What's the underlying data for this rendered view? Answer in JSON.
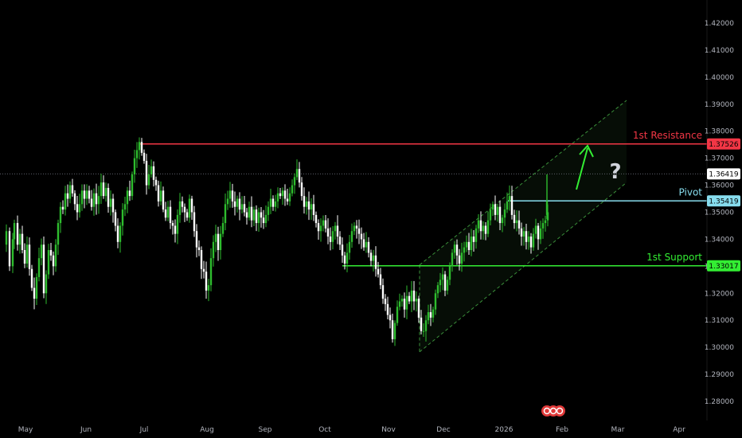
{
  "chart_data": {
    "type": "candlestick",
    "title": "",
    "xlabel": "",
    "ylabel": "",
    "ylim": [
      1.275,
      1.425
    ],
    "grid": false,
    "x_ticks": [
      "May",
      "Jun",
      "Jul",
      "Aug",
      "Sep",
      "Oct",
      "Nov",
      "Dec",
      "2026",
      "Feb",
      "Mar",
      "Apr"
    ],
    "y_ticks": [
      "1.28000",
      "1.29000",
      "1.30000",
      "1.31000",
      "1.32000",
      "1.33000",
      "1.34000",
      "1.35000",
      "1.36000",
      "1.37000",
      "1.38000",
      "1.39000",
      "1.40000",
      "1.41000",
      "1.42000"
    ],
    "current_price": {
      "label": "1.36419",
      "value": 1.36419
    },
    "levels": [
      {
        "name": "1st Resistance",
        "tag": "1.37526",
        "value": 1.37526,
        "color": "#f23645"
      },
      {
        "name": "Pivot",
        "tag": "1.35419",
        "value": 1.35419,
        "color": "#87ddee"
      },
      {
        "name": "1st Support",
        "tag": "1.33017",
        "value": 1.33017,
        "color": "#33ee33"
      }
    ],
    "annotations": {
      "question_mark": "?"
    },
    "colors": {
      "up": "#2ebd2e",
      "down": "#ffffff",
      "channel": "#3a8f3a",
      "arrow": "#33ee33"
    },
    "price_path": [
      [
        0,
        1.338
      ],
      [
        8,
        1.343
      ],
      [
        12,
        1.33
      ],
      [
        16,
        1.34
      ],
      [
        18,
        1.346
      ],
      [
        22,
        1.338
      ],
      [
        25,
        1.342
      ],
      [
        28,
        1.336
      ],
      [
        31,
        1.331
      ],
      [
        34,
        1.338
      ],
      [
        37,
        1.329
      ],
      [
        40,
        1.322
      ],
      [
        43,
        1.318
      ],
      [
        46,
        1.326
      ],
      [
        49,
        1.333
      ],
      [
        52,
        1.338
      ],
      [
        55,
        1.32
      ],
      [
        58,
        1.327
      ],
      [
        61,
        1.336
      ],
      [
        64,
        1.334
      ],
      [
        67,
        1.33
      ],
      [
        70,
        1.338
      ],
      [
        73,
        1.346
      ],
      [
        76,
        1.352
      ],
      [
        79,
        1.351
      ],
      [
        82,
        1.357
      ],
      [
        85,
        1.355
      ],
      [
        88,
        1.36
      ],
      [
        91,
        1.357
      ],
      [
        94,
        1.353
      ],
      [
        97,
        1.35
      ],
      [
        100,
        1.353
      ],
      [
        103,
        1.358
      ],
      [
        106,
        1.355
      ],
      [
        109,
        1.358
      ],
      [
        112,
        1.355
      ],
      [
        115,
        1.352
      ],
      [
        118,
        1.357
      ],
      [
        121,
        1.353
      ],
      [
        124,
        1.356
      ],
      [
        127,
        1.361
      ],
      [
        130,
        1.356
      ],
      [
        133,
        1.359
      ],
      [
        136,
        1.352
      ],
      [
        139,
        1.355
      ],
      [
        142,
        1.35
      ],
      [
        145,
        1.345
      ],
      [
        148,
        1.339
      ],
      [
        151,
        1.345
      ],
      [
        154,
        1.351
      ],
      [
        157,
        1.353
      ],
      [
        160,
        1.358
      ],
      [
        163,
        1.356
      ],
      [
        166,
        1.364
      ],
      [
        169,
        1.37
      ],
      [
        172,
        1.373
      ],
      [
        175,
        1.376
      ],
      [
        178,
        1.372
      ],
      [
        181,
        1.369
      ],
      [
        184,
        1.36
      ],
      [
        187,
        1.364
      ],
      [
        190,
        1.367
      ],
      [
        193,
        1.362
      ],
      [
        196,
        1.36
      ],
      [
        199,
        1.354
      ],
      [
        202,
        1.358
      ],
      [
        205,
        1.351
      ],
      [
        208,
        1.348
      ],
      [
        211,
        1.352
      ],
      [
        214,
        1.346
      ],
      [
        217,
        1.345
      ],
      [
        220,
        1.342
      ],
      [
        223,
        1.349
      ],
      [
        226,
        1.354
      ],
      [
        229,
        1.352
      ],
      [
        232,
        1.35
      ],
      [
        235,
        1.348
      ],
      [
        238,
        1.355
      ],
      [
        241,
        1.35
      ],
      [
        244,
        1.343
      ],
      [
        247,
        1.337
      ],
      [
        250,
        1.336
      ],
      [
        253,
        1.329
      ],
      [
        256,
        1.328
      ],
      [
        259,
        1.321
      ],
      [
        262,
        1.323
      ],
      [
        265,
        1.333
      ],
      [
        268,
        1.339
      ],
      [
        271,
        1.342
      ],
      [
        274,
        1.336
      ],
      [
        277,
        1.342
      ],
      [
        280,
        1.346
      ],
      [
        283,
        1.353
      ],
      [
        286,
        1.355
      ],
      [
        289,
        1.358
      ],
      [
        292,
        1.354
      ],
      [
        295,
        1.352
      ],
      [
        298,
        1.355
      ],
      [
        301,
        1.351
      ],
      [
        304,
        1.353
      ],
      [
        307,
        1.35
      ],
      [
        310,
        1.348
      ],
      [
        313,
        1.352
      ],
      [
        316,
        1.347
      ],
      [
        319,
        1.351
      ],
      [
        322,
        1.346
      ],
      [
        325,
        1.35
      ],
      [
        328,
        1.348
      ],
      [
        331,
        1.346
      ],
      [
        334,
        1.349
      ],
      [
        337,
        1.352
      ],
      [
        340,
        1.355
      ],
      [
        343,
        1.352
      ],
      [
        346,
        1.354
      ],
      [
        349,
        1.357
      ],
      [
        352,
        1.356
      ],
      [
        355,
        1.358
      ],
      [
        358,
        1.355
      ],
      [
        361,
        1.354
      ],
      [
        364,
        1.357
      ],
      [
        367,
        1.36
      ],
      [
        370,
        1.363
      ],
      [
        373,
        1.366
      ],
      [
        376,
        1.361
      ],
      [
        379,
        1.356
      ],
      [
        382,
        1.352
      ],
      [
        385,
        1.354
      ],
      [
        388,
        1.351
      ],
      [
        391,
        1.353
      ],
      [
        394,
        1.349
      ],
      [
        397,
        1.346
      ],
      [
        400,
        1.343
      ],
      [
        403,
        1.345
      ],
      [
        406,
        1.347
      ],
      [
        409,
        1.344
      ],
      [
        412,
        1.341
      ],
      [
        415,
        1.339
      ],
      [
        418,
        1.343
      ],
      [
        421,
        1.345
      ],
      [
        424,
        1.341
      ],
      [
        427,
        1.338
      ],
      [
        430,
        1.334
      ],
      [
        433,
        1.331
      ],
      [
        436,
        1.335
      ],
      [
        439,
        1.339
      ],
      [
        442,
        1.343
      ],
      [
        445,
        1.345
      ],
      [
        448,
        1.344
      ],
      [
        451,
        1.342
      ],
      [
        454,
        1.34
      ],
      [
        457,
        1.337
      ],
      [
        460,
        1.339
      ],
      [
        463,
        1.335
      ],
      [
        466,
        1.332
      ],
      [
        469,
        1.334
      ],
      [
        472,
        1.329
      ],
      [
        475,
        1.327
      ],
      [
        478,
        1.323
      ],
      [
        481,
        1.318
      ],
      [
        484,
        1.316
      ],
      [
        487,
        1.312
      ],
      [
        490,
        1.31
      ],
      [
        493,
        1.303
      ],
      [
        496,
        1.309
      ],
      [
        499,
        1.315
      ],
      [
        502,
        1.317
      ],
      [
        505,
        1.318
      ],
      [
        508,
        1.314
      ],
      [
        511,
        1.319
      ],
      [
        514,
        1.317
      ],
      [
        517,
        1.321
      ],
      [
        520,
        1.317
      ],
      [
        523,
        1.318
      ],
      [
        526,
        1.311
      ],
      [
        529,
        1.306
      ],
      [
        532,
        1.306
      ],
      [
        535,
        1.31
      ],
      [
        538,
        1.313
      ],
      [
        541,
        1.311
      ],
      [
        544,
        1.314
      ],
      [
        547,
        1.32
      ],
      [
        550,
        1.323
      ],
      [
        553,
        1.325
      ],
      [
        556,
        1.327
      ],
      [
        559,
        1.321
      ],
      [
        562,
        1.325
      ],
      [
        565,
        1.33
      ],
      [
        568,
        1.335
      ],
      [
        571,
        1.338
      ],
      [
        574,
        1.334
      ],
      [
        577,
        1.331
      ],
      [
        580,
        1.335
      ],
      [
        583,
        1.337
      ],
      [
        586,
        1.339
      ],
      [
        589,
        1.336
      ],
      [
        592,
        1.341
      ],
      [
        595,
        1.339
      ],
      [
        598,
        1.344
      ],
      [
        601,
        1.347
      ],
      [
        604,
        1.343
      ],
      [
        607,
        1.345
      ],
      [
        610,
        1.342
      ],
      [
        613,
        1.347
      ],
      [
        616,
        1.351
      ],
      [
        619,
        1.353
      ],
      [
        622,
        1.349
      ],
      [
        625,
        1.352
      ],
      [
        628,
        1.346
      ],
      [
        631,
        1.348
      ],
      [
        634,
        1.351
      ],
      [
        637,
        1.354
      ],
      [
        640,
        1.356
      ],
      [
        643,
        1.349
      ],
      [
        646,
        1.346
      ],
      [
        649,
        1.347
      ],
      [
        652,
        1.344
      ],
      [
        655,
        1.341
      ],
      [
        658,
        1.343
      ],
      [
        661,
        1.339
      ],
      [
        664,
        1.341
      ],
      [
        667,
        1.337
      ],
      [
        670,
        1.342
      ],
      [
        673,
        1.345
      ],
      [
        676,
        1.34
      ],
      [
        679,
        1.344
      ],
      [
        682,
        1.346
      ],
      [
        685,
        1.347
      ],
      [
        688,
        1.35
      ]
    ]
  },
  "watermark": {
    "name": "tradingview-logo"
  }
}
